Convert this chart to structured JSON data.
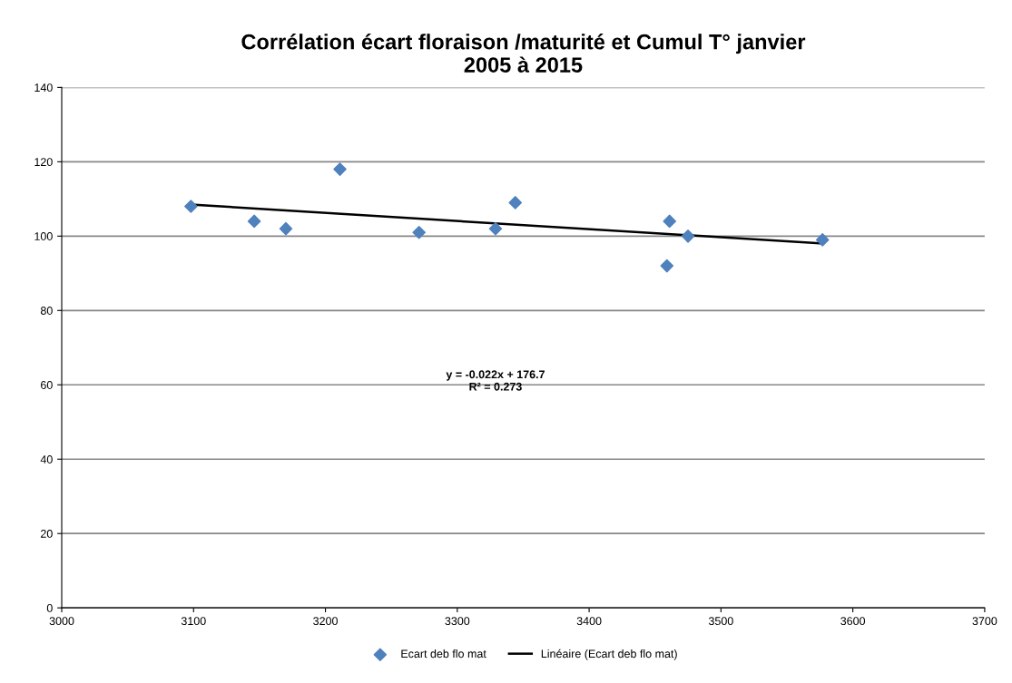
{
  "chart_data": {
    "type": "scatter",
    "title": "Corrélation écart floraison /maturité et Cumul T° janvier\n2005 à 2015",
    "series": [
      {
        "name": "Ecart deb flo mat",
        "color": "#4f81bd",
        "marker": "diamond",
        "x": [
          3098,
          3146,
          3170,
          3211,
          3271,
          3329,
          3344,
          3461,
          3459,
          3475,
          3577
        ],
        "values": [
          108,
          104,
          102,
          118,
          101,
          102,
          109,
          104,
          92,
          100,
          99
        ]
      },
      {
        "name": "Linéaire (Ecart deb flo mat)",
        "type": "line",
        "color": "#000000",
        "marker": "none",
        "line_style": "solid",
        "x": [
          3098,
          3577
        ],
        "values": [
          108.5,
          98.0
        ]
      }
    ],
    "annotations": [
      "y = -0.022x + 176.7\nR² = 0.273"
    ],
    "xlim": [
      3000,
      3700
    ],
    "xticks": [
      3000,
      3100,
      3200,
      3300,
      3400,
      3500,
      3600,
      3700
    ],
    "ylim": [
      0,
      140
    ],
    "yticks": [
      0,
      20,
      40,
      60,
      80,
      100,
      120,
      140
    ],
    "grid": "y",
    "legend": "bottom"
  }
}
